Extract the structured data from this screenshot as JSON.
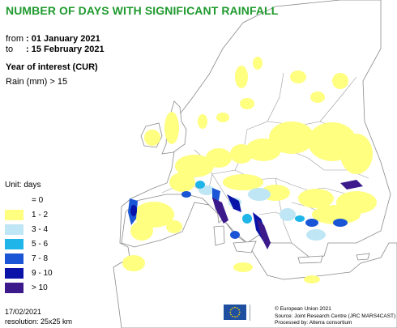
{
  "header": {
    "title": "NUMBER OF DAYS WITH SIGNIFICANT RAINFALL",
    "from_label": "from",
    "from_value": ": 01 January 2021",
    "to_label": "to",
    "to_value": ": 15 February 2021",
    "year_of_interest": "Year of interest (CUR)",
    "rain_threshold": "Rain (mm) > 15"
  },
  "legend": {
    "unit": "Unit: days",
    "items": [
      {
        "label": "= 0",
        "color": "#ffffff"
      },
      {
        "label": "1 - 2",
        "color": "#ffff80"
      },
      {
        "label": "3 - 4",
        "color": "#bfe6f5"
      },
      {
        "label": "5 - 6",
        "color": "#1fb5e9"
      },
      {
        "label": "7 - 8",
        "color": "#1a55d6"
      },
      {
        "label": "9 - 10",
        "color": "#0a13a8"
      },
      {
        "label": "> 10",
        "color": "#3c1a8c"
      }
    ]
  },
  "footer": {
    "date": "17/02/2021",
    "resolution": "resolution: 25x25 km",
    "credit_1": "© European Union 2021",
    "credit_2": "Source: Joint Research Centre (JRC MARS4CAST)",
    "credit_3": "Processed by: Alterra consortium"
  },
  "colors": {
    "title_green": "#1f9a2e",
    "sea": "#ffffff",
    "land": "#ffffff",
    "border": "#8a8a8a",
    "eu_blue": "#1f4fa0",
    "eu_star": "#ffd400"
  }
}
